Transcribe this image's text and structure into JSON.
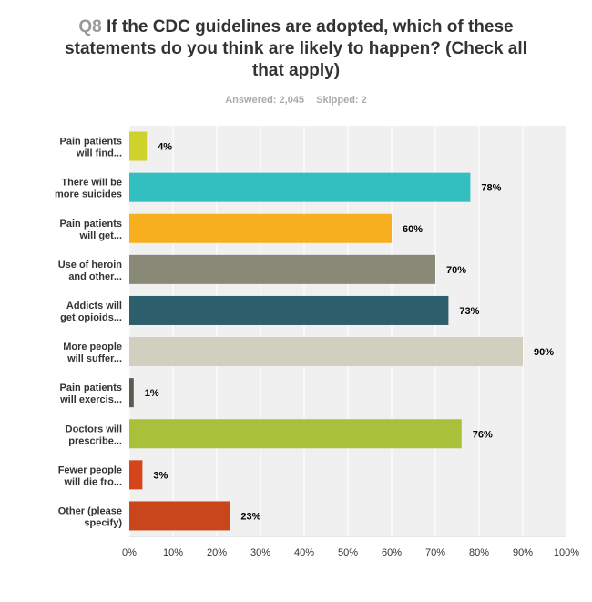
{
  "header": {
    "question_number": "Q8",
    "question_text": "If the CDC guidelines are adopted, which of these statements do you think are likely to happen? (Check all that apply)",
    "answered": "Answered: 2,045",
    "skipped": "Skipped: 2"
  },
  "chart_data": {
    "type": "bar",
    "orientation": "horizontal",
    "categories": [
      [
        "Pain patients",
        "will find..."
      ],
      [
        "There will be",
        "more suicides"
      ],
      [
        "Pain patients",
        "will get..."
      ],
      [
        "Use of heroin",
        "and other..."
      ],
      [
        "Addicts will",
        "get opioids..."
      ],
      [
        "More people",
        "will suffer..."
      ],
      [
        "Pain patients",
        "will exercis..."
      ],
      [
        "Doctors will",
        "prescribe..."
      ],
      [
        "Fewer people",
        "will die fro..."
      ],
      [
        "Other (please",
        "specify)"
      ]
    ],
    "values": [
      4,
      78,
      60,
      70,
      73,
      90,
      1,
      76,
      3,
      23
    ],
    "value_labels": [
      "4%",
      "78%",
      "60%",
      "70%",
      "73%",
      "90%",
      "1%",
      "76%",
      "3%",
      "23%"
    ],
    "colors": [
      "#cfd22a",
      "#33bfbf",
      "#f7ae1f",
      "#898977",
      "#2d5e6b",
      "#d0cfc0",
      "#5d5b50",
      "#a8c03a",
      "#d4461a",
      "#c9451c"
    ],
    "xlim": [
      0,
      100
    ],
    "x_ticks": [
      "0%",
      "10%",
      "20%",
      "30%",
      "40%",
      "50%",
      "60%",
      "70%",
      "80%",
      "90%",
      "100%"
    ],
    "grid": true
  }
}
